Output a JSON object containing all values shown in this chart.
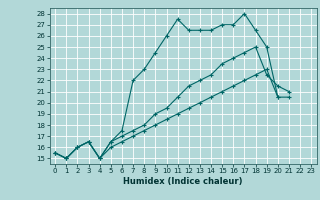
{
  "xlabel": "Humidex (Indice chaleur)",
  "bg_color": "#b2d8d8",
  "grid_color": "#ffffff",
  "line_color": "#006666",
  "ylim": [
    14.5,
    28.5
  ],
  "xlim": [
    -0.5,
    23.5
  ],
  "yticks": [
    15,
    16,
    17,
    18,
    19,
    20,
    21,
    22,
    23,
    24,
    25,
    26,
    27,
    28
  ],
  "xticks": [
    0,
    1,
    2,
    3,
    4,
    5,
    6,
    7,
    8,
    9,
    10,
    11,
    12,
    13,
    14,
    15,
    16,
    17,
    18,
    19,
    20,
    21,
    22,
    23
  ],
  "series": [
    [
      15.5,
      15.0,
      16.0,
      16.5,
      15.0,
      16.5,
      17.5,
      22.0,
      23.0,
      24.5,
      26.0,
      27.5,
      26.5,
      26.5,
      26.5,
      27.0,
      27.0,
      28.0,
      26.5,
      25.0,
      20.5,
      null,
      null,
      null
    ],
    [
      15.5,
      15.0,
      16.0,
      16.5,
      15.0,
      16.5,
      17.0,
      17.5,
      18.0,
      19.0,
      19.5,
      20.5,
      21.5,
      22.0,
      22.5,
      23.5,
      24.0,
      24.5,
      25.0,
      22.5,
      21.5,
      21.0,
      null,
      null
    ],
    [
      15.5,
      15.0,
      16.0,
      16.5,
      15.0,
      16.0,
      16.5,
      17.0,
      17.5,
      18.0,
      18.5,
      19.0,
      19.5,
      20.0,
      20.5,
      21.0,
      21.5,
      22.0,
      22.5,
      23.0,
      20.5,
      20.5,
      null,
      null
    ]
  ]
}
